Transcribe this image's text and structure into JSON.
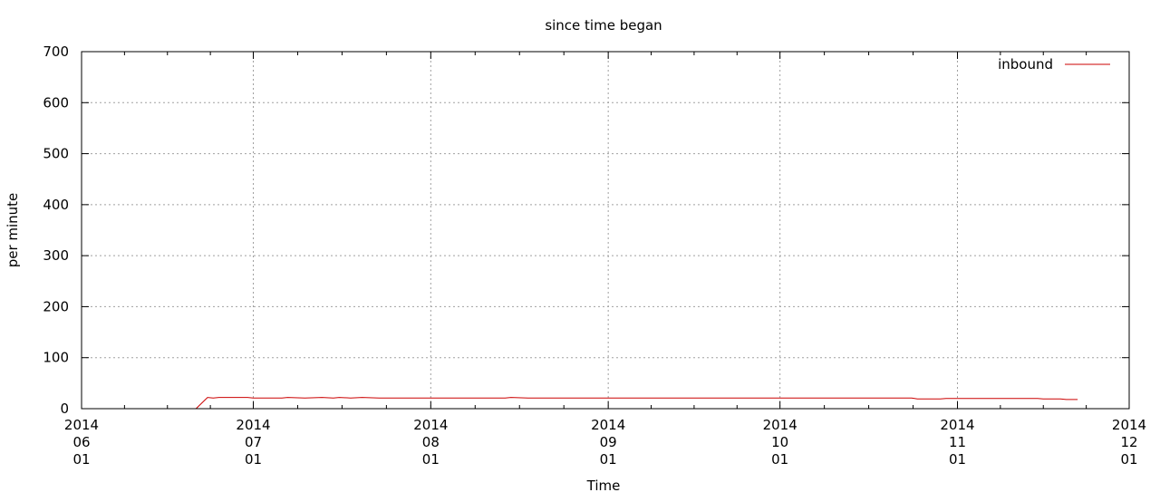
{
  "chart_data": {
    "type": "line",
    "title": "since time began",
    "xlabel": "Time",
    "ylabel": "per minute",
    "ylim": [
      0,
      700
    ],
    "yticks": [
      0,
      100,
      200,
      300,
      400,
      500,
      600,
      700
    ],
    "xlim": [
      "2014-06-01",
      "2014-12-01"
    ],
    "xticks": [
      {
        "date": "2014-06-01",
        "label": [
          "2014",
          "06",
          "01"
        ]
      },
      {
        "date": "2014-07-01",
        "label": [
          "2014",
          "07",
          "01"
        ]
      },
      {
        "date": "2014-08-01",
        "label": [
          "2014",
          "08",
          "01"
        ]
      },
      {
        "date": "2014-09-01",
        "label": [
          "2014",
          "09",
          "01"
        ]
      },
      {
        "date": "2014-10-01",
        "label": [
          "2014",
          "10",
          "01"
        ]
      },
      {
        "date": "2014-11-01",
        "label": [
          "2014",
          "11",
          "01"
        ]
      },
      {
        "date": "2014-12-01",
        "label": [
          "2014",
          "12",
          "01"
        ]
      }
    ],
    "minor_ticks_per_interval": 3,
    "grid": true,
    "legend_position": "top-right",
    "series": [
      {
        "name": "inbound",
        "color": "#cc0000",
        "points": [
          [
            "2014-06-21",
            0
          ],
          [
            "2014-06-23",
            22
          ],
          [
            "2014-06-24",
            21
          ],
          [
            "2014-06-25",
            22
          ],
          [
            "2014-06-30",
            22
          ],
          [
            "2014-07-01",
            21
          ],
          [
            "2014-07-06",
            21
          ],
          [
            "2014-07-07",
            22
          ],
          [
            "2014-07-10",
            21
          ],
          [
            "2014-07-13",
            22
          ],
          [
            "2014-07-15",
            21
          ],
          [
            "2014-07-16",
            22
          ],
          [
            "2014-07-18",
            21
          ],
          [
            "2014-07-20",
            22
          ],
          [
            "2014-07-23",
            21
          ],
          [
            "2014-08-14",
            21
          ],
          [
            "2014-08-15",
            22
          ],
          [
            "2014-08-18",
            21
          ],
          [
            "2014-10-24",
            21
          ],
          [
            "2014-10-25",
            19
          ],
          [
            "2014-10-29",
            19
          ],
          [
            "2014-10-30",
            20
          ],
          [
            "2014-11-15",
            20
          ],
          [
            "2014-11-16",
            19
          ],
          [
            "2014-11-19",
            19
          ],
          [
            "2014-11-20",
            18
          ],
          [
            "2014-11-22",
            18
          ]
        ]
      }
    ]
  }
}
